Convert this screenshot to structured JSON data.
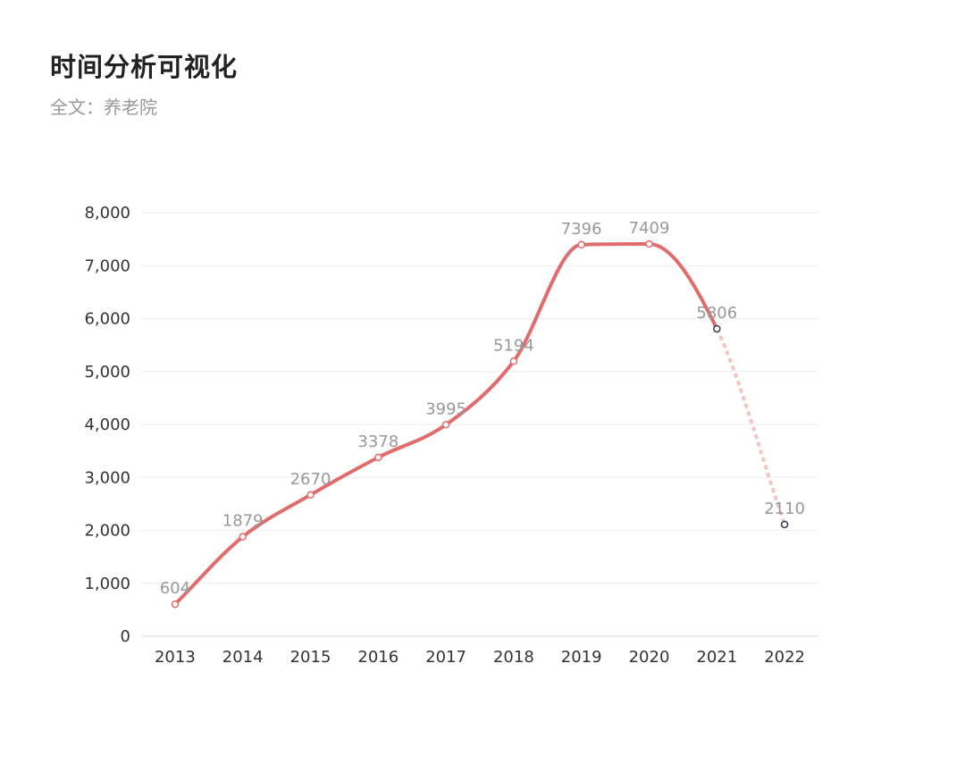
{
  "header": {
    "title": "时间分析可视化",
    "subtitle": "全文：养老院"
  },
  "chart_data": {
    "type": "line",
    "categories": [
      "2013",
      "2014",
      "2015",
      "2016",
      "2017",
      "2018",
      "2019",
      "2020",
      "2021",
      "2022"
    ],
    "values": [
      604,
      1879,
      2670,
      3378,
      3995,
      5194,
      7396,
      7409,
      5806,
      2110
    ],
    "data_labels": [
      "604",
      "1879",
      "2670",
      "3378",
      "3995",
      "5194",
      "7396",
      "7409",
      "5806",
      "2110"
    ],
    "y_ticks": [
      "0",
      "1,000",
      "2,000",
      "3,000",
      "4,000",
      "5,000",
      "6,000",
      "7,000",
      "8,000"
    ],
    "ylim": [
      0,
      8000
    ],
    "smooth": true,
    "grid": true,
    "solid_through": "2021",
    "dashed_from": "2021",
    "colors": {
      "line": "#e06c6c",
      "dashed_line": "#f3c5c5",
      "solid_marker_stroke": "#e06c6c",
      "projected_marker_stroke": "#2f3e4a",
      "grid": "#eeeeee",
      "axis": "#dddddd"
    }
  }
}
